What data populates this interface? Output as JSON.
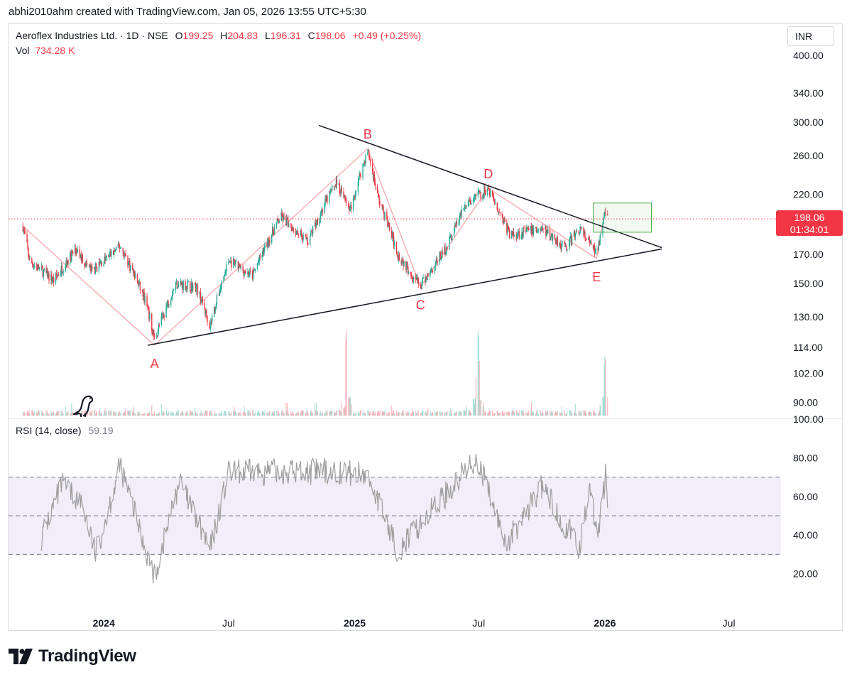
{
  "watermark_line": "abhi2010ahm created with TradingView.com, Jan 05, 2026 13:55 UTC+5:30",
  "legend": {
    "symbol": "Aeroflex Industries Ltd. · 1D · NSE",
    "o_label": "O",
    "o_value": "199.25",
    "h_label": "H",
    "h_value": "204.83",
    "l_label": "L",
    "l_value": "196.31",
    "c_label": "C",
    "c_value": "198.06",
    "change": "+0.49 (+0.25%)",
    "vol_label": "Vol",
    "vol_value": "734.28 K"
  },
  "currency": "INR",
  "price_tag": {
    "price": "198.06",
    "countdown": "01:34:01"
  },
  "rsi_legend": {
    "label": "RSI (14, close)",
    "value": "59.19"
  },
  "brand": "TradingView",
  "colors": {
    "up": "#22ab94",
    "down": "#f23645",
    "rsi_line": "#9e9e9e",
    "rsi_band": "#7e57c2",
    "box": "#4caf50",
    "wave": "#f7a7ad"
  },
  "icons": [
    "dinosaur-icon",
    "tradingview-logo-icon"
  ],
  "chart_data": [
    {
      "type": "candlestick",
      "title": "",
      "x_ticks": [
        "2024",
        "Jul",
        "2025",
        "Jul",
        "2026",
        "Jul"
      ],
      "x_tick_dates": [
        "2024-01-01",
        "2024-07-01",
        "2025-01-01",
        "2025-07-01",
        "2026-01-01",
        "2026-07-01"
      ],
      "x_range": [
        "2023-08-15",
        "2026-09-15"
      ],
      "y_scale": "log",
      "y_ticks": [
        "400.00",
        "340.00",
        "300.00",
        "260.00",
        "220.00",
        "170.00",
        "150.00",
        "130.00",
        "114.00",
        "102.00",
        "90.00"
      ],
      "y_range": [
        85,
        420
      ],
      "last_close": 198.06,
      "anchors": [
        {
          "date": "2023-09-05",
          "price": 192
        },
        {
          "date": "2023-09-15",
          "price": 165
        },
        {
          "date": "2023-10-20",
          "price": 152
        },
        {
          "date": "2023-11-20",
          "price": 173
        },
        {
          "date": "2023-12-15",
          "price": 158
        },
        {
          "date": "2024-01-25",
          "price": 176
        },
        {
          "date": "2024-03-01",
          "price": 140
        },
        {
          "date": "2024-03-15",
          "price": 118
        },
        {
          "date": "2024-04-15",
          "price": 150
        },
        {
          "date": "2024-05-15",
          "price": 148
        },
        {
          "date": "2024-06-04",
          "price": 125
        },
        {
          "date": "2024-07-01",
          "price": 165
        },
        {
          "date": "2024-08-05",
          "price": 155
        },
        {
          "date": "2024-09-15",
          "price": 200
        },
        {
          "date": "2024-10-25",
          "price": 180
        },
        {
          "date": "2024-12-05",
          "price": 232
        },
        {
          "date": "2024-12-25",
          "price": 205
        },
        {
          "date": "2025-01-20",
          "price": 265
        },
        {
          "date": "2025-02-05",
          "price": 215
        },
        {
          "date": "2025-03-05",
          "price": 170
        },
        {
          "date": "2025-04-07",
          "price": 148
        },
        {
          "date": "2025-05-15",
          "price": 175
        },
        {
          "date": "2025-06-10",
          "price": 208
        },
        {
          "date": "2025-07-15",
          "price": 226
        },
        {
          "date": "2025-08-15",
          "price": 185
        },
        {
          "date": "2025-10-01",
          "price": 190
        },
        {
          "date": "2025-11-05",
          "price": 175
        },
        {
          "date": "2025-11-25",
          "price": 190
        },
        {
          "date": "2025-12-20",
          "price": 170
        },
        {
          "date": "2026-01-02",
          "price": 205
        },
        {
          "date": "2026-01-05",
          "price": 198
        }
      ],
      "wave_points": [
        {
          "label": "",
          "date": "2023-09-05",
          "price": 192
        },
        {
          "label": "A",
          "date": "2024-03-15",
          "price": 115
        },
        {
          "label": "B",
          "date": "2025-01-20",
          "price": 268
        },
        {
          "label": "C",
          "date": "2025-04-07",
          "price": 148
        },
        {
          "label": "D",
          "date": "2025-07-15",
          "price": 226
        },
        {
          "label": "E",
          "date": "2025-12-20",
          "price": 167
        },
        {
          "label": "",
          "date": "2026-01-02",
          "price": 208
        }
      ],
      "trendlines": [
        {
          "from": {
            "date": "2024-03-05",
            "price": 115
          },
          "to": {
            "date": "2026-03-25",
            "price": 174
          }
        },
        {
          "from": {
            "date": "2024-11-10",
            "price": 296
          },
          "to": {
            "date": "2026-03-25",
            "price": 175
          }
        }
      ],
      "breakout_box": {
        "from_date": "2025-12-15",
        "to_date": "2026-03-10",
        "top": 212,
        "bottom": 187
      },
      "volume": {
        "label": "Vol",
        "latest": "734.28 K",
        "spikes": [
          "2024-12-20",
          "2025-06-28",
          "2025-07-01",
          "2026-01-01"
        ]
      }
    },
    {
      "type": "line",
      "title": "RSI (14, close)",
      "y_ticks": [
        "100.00",
        "80.00",
        "60.00",
        "40.00",
        "20.00"
      ],
      "y_range": [
        0,
        100
      ],
      "levels": [
        70,
        50,
        30
      ],
      "last_value": 59.19,
      "anchors": [
        {
          "date": "2023-10-01",
          "value": 38
        },
        {
          "date": "2023-11-01",
          "value": 66
        },
        {
          "date": "2023-12-01",
          "value": 56
        },
        {
          "date": "2023-12-20",
          "value": 30
        },
        {
          "date": "2024-01-25",
          "value": 76
        },
        {
          "date": "2024-03-15",
          "value": 18
        },
        {
          "date": "2024-04-20",
          "value": 68
        },
        {
          "date": "2024-06-04",
          "value": 32
        },
        {
          "date": "2024-07-01",
          "value": 72
        },
        {
          "date": "2024-09-15",
          "value": 73
        },
        {
          "date": "2024-12-05",
          "value": 73
        },
        {
          "date": "2025-01-20",
          "value": 71
        },
        {
          "date": "2025-03-05",
          "value": 32
        },
        {
          "date": "2025-06-28",
          "value": 80
        },
        {
          "date": "2025-08-10",
          "value": 35
        },
        {
          "date": "2025-10-01",
          "value": 65
        },
        {
          "date": "2025-11-25",
          "value": 33
        },
        {
          "date": "2025-12-10",
          "value": 68
        },
        {
          "date": "2025-12-20",
          "value": 38
        },
        {
          "date": "2026-01-02",
          "value": 70
        },
        {
          "date": "2026-01-05",
          "value": 59.19
        }
      ]
    }
  ]
}
